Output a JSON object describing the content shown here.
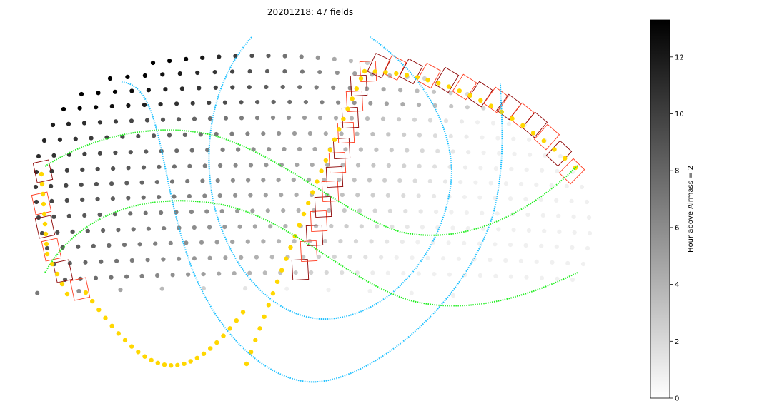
{
  "chart_data": {
    "type": "scatter",
    "title": "20201218: 47 fields",
    "projection": "all-sky (Hammer-Aitoff style)",
    "grid": false,
    "colorbar": {
      "label": "Hour above Airmass = 2",
      "range": [
        0,
        13.3
      ],
      "ticks": [
        0,
        2,
        4,
        6,
        8,
        10,
        12
      ],
      "colormap": "grayscale (white to black)",
      "placement": "right"
    },
    "series": [
      {
        "kind": "candidate field centers",
        "color": "colormapped by hours above airmass 2"
      },
      {
        "kind": "observed field footprints",
        "color": "#8b0000 / #ff3b1f outlines",
        "count": 47
      },
      {
        "kind": "path (yellow dotted track)",
        "color": "#ffd700"
      },
      {
        "kind": "path (cyan curves)",
        "color": "#1ec0ff"
      },
      {
        "kind": "path (green curves)",
        "color": "#22ee22"
      }
    ]
  }
}
